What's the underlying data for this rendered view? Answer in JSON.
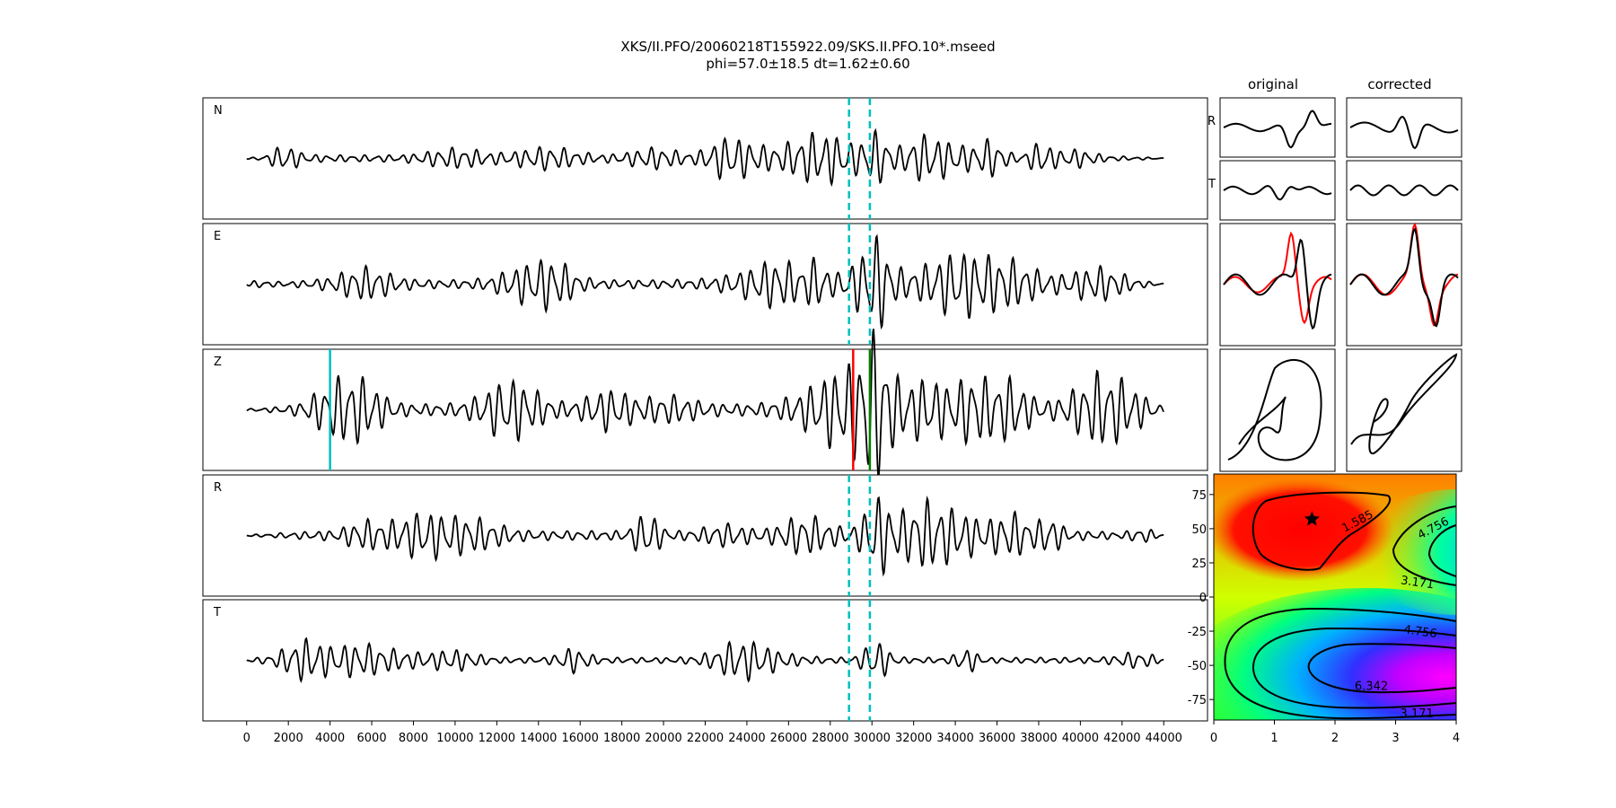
{
  "title": {
    "line1": "XKS/II.PFO/20060218T155922.09/SKS.II.PFO.10*.mseed",
    "line2": "phi=57.0±18.5 dt=1.62±0.60"
  },
  "column_titles": {
    "original": "original",
    "corrected": "corrected"
  },
  "colors": {
    "trace": "#000000",
    "window_marker": "#00bfbf",
    "pick_red": "#ff0000",
    "pick_green": "#008000",
    "axes": "#000000"
  },
  "chart_data": [
    {
      "type": "line",
      "description_components": [
        "N",
        "E",
        "Z",
        "R",
        "T"
      ],
      "panels": [
        {
          "label": "N",
          "amplitude": 0.55,
          "seed": 11
        },
        {
          "label": "E",
          "amplitude": 0.7,
          "seed": 23
        },
        {
          "label": "Z",
          "amplitude": 0.95,
          "seed": 37
        },
        {
          "label": "R",
          "amplitude": 0.75,
          "seed": 41
        },
        {
          "label": "T",
          "amplitude": 0.45,
          "seed": 53
        }
      ],
      "xlim": [
        -2100,
        46100
      ],
      "x_ticks": [
        0,
        2000,
        4000,
        6000,
        8000,
        10000,
        12000,
        14000,
        16000,
        18000,
        20000,
        22000,
        24000,
        26000,
        28000,
        30000,
        32000,
        34000,
        36000,
        38000,
        40000,
        42000,
        44000
      ],
      "trace_range": [
        0,
        44000
      ],
      "window_lines": [
        28900,
        29900
      ],
      "z_markers": [
        {
          "x": 4000,
          "color": "cyan"
        },
        {
          "x": 29100,
          "color": "red"
        },
        {
          "x": 29900,
          "color": "green"
        }
      ]
    },
    {
      "type": "line",
      "panels": [
        {
          "row_label": "R",
          "column": "original"
        },
        {
          "row_label": "T",
          "column": "original"
        },
        {
          "row_label": "R",
          "column": "corrected"
        },
        {
          "row_label": "T",
          "column": "corrected"
        }
      ]
    },
    {
      "type": "heatmap",
      "xlim": [
        0,
        4
      ],
      "ylim": [
        -90,
        90
      ],
      "x_ticks": [
        0,
        1,
        2,
        3,
        4
      ],
      "y_ticks": [
        75,
        50,
        25,
        0,
        -25,
        -50,
        -75
      ],
      "best": {
        "dt": 1.62,
        "phi": 57.0
      },
      "contour_labels": [
        "1.585",
        "3.171",
        "4.756",
        "6.342"
      ],
      "label_positions": [
        {
          "text": "1.585",
          "dt": 2.4,
          "phi": 53
        },
        {
          "text": "4.756",
          "dt": 3.65,
          "phi": 48
        },
        {
          "text": "3.171",
          "dt": 3.35,
          "phi": 8
        },
        {
          "text": "4.756",
          "dt": 3.4,
          "phi": -28
        },
        {
          "text": "6.342",
          "dt": 2.6,
          "phi": -68
        },
        {
          "text": "3.171",
          "dt": 3.35,
          "phi": -88
        }
      ]
    }
  ]
}
